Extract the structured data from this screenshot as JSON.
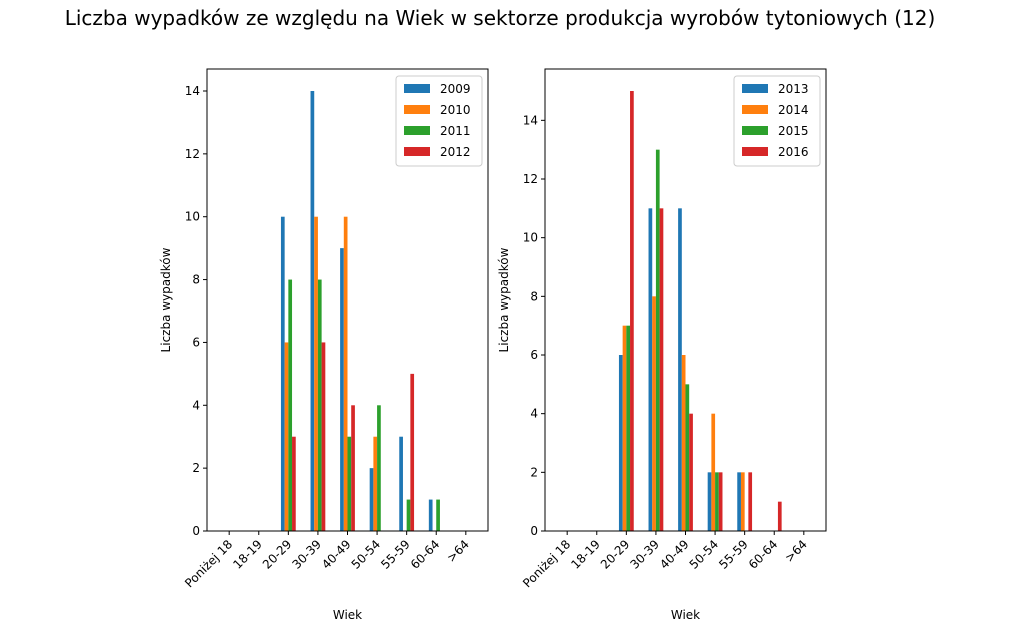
{
  "title": "Liczba wypadków ze względu na Wiek w sektorze produkcja wyrobów tytoniowych  (12)",
  "colors": [
    "#1f77b4",
    "#ff7f0e",
    "#2ca02c",
    "#d62728"
  ],
  "chart_data": [
    {
      "type": "bar",
      "title": "",
      "xlabel": "Wiek",
      "ylabel": "Liczba wypadków",
      "categories": [
        "Poniżej 18",
        "18-19",
        "20-29",
        "30-39",
        "40-49",
        "50-54",
        "55-59",
        "60-64",
        ">64"
      ],
      "ylim": [
        0,
        14.7
      ],
      "yticks": [
        0,
        2,
        4,
        6,
        8,
        10,
        12,
        14
      ],
      "legend_position": "top-right",
      "series": [
        {
          "name": "2009",
          "values": [
            0,
            0,
            10,
            14,
            9,
            2,
            3,
            1,
            0
          ]
        },
        {
          "name": "2010",
          "values": [
            0,
            0,
            6,
            10,
            10,
            3,
            0,
            0,
            0
          ]
        },
        {
          "name": "2011",
          "values": [
            0,
            0,
            8,
            8,
            3,
            4,
            1,
            1,
            0
          ]
        },
        {
          "name": "2012",
          "values": [
            0,
            0,
            3,
            6,
            4,
            0,
            5,
            0,
            0
          ]
        }
      ]
    },
    {
      "type": "bar",
      "title": "",
      "xlabel": "Wiek",
      "ylabel": "Liczba wypadków",
      "categories": [
        "Poniżej 18",
        "18-19",
        "20-29",
        "30-39",
        "40-49",
        "50-54",
        "55-59",
        "60-64",
        ">64"
      ],
      "ylim": [
        0,
        15.75
      ],
      "yticks": [
        0,
        2,
        4,
        6,
        8,
        10,
        12,
        14
      ],
      "legend_position": "top-right",
      "series": [
        {
          "name": "2013",
          "values": [
            0,
            0,
            6,
            11,
            11,
            2,
            2,
            0,
            0
          ]
        },
        {
          "name": "2014",
          "values": [
            0,
            0,
            7,
            8,
            6,
            4,
            2,
            0,
            0
          ]
        },
        {
          "name": "2015",
          "values": [
            0,
            0,
            7,
            13,
            5,
            2,
            0,
            0,
            0
          ]
        },
        {
          "name": "2016",
          "values": [
            0,
            0,
            15,
            11,
            4,
            2,
            2,
            1,
            0
          ]
        }
      ]
    }
  ]
}
